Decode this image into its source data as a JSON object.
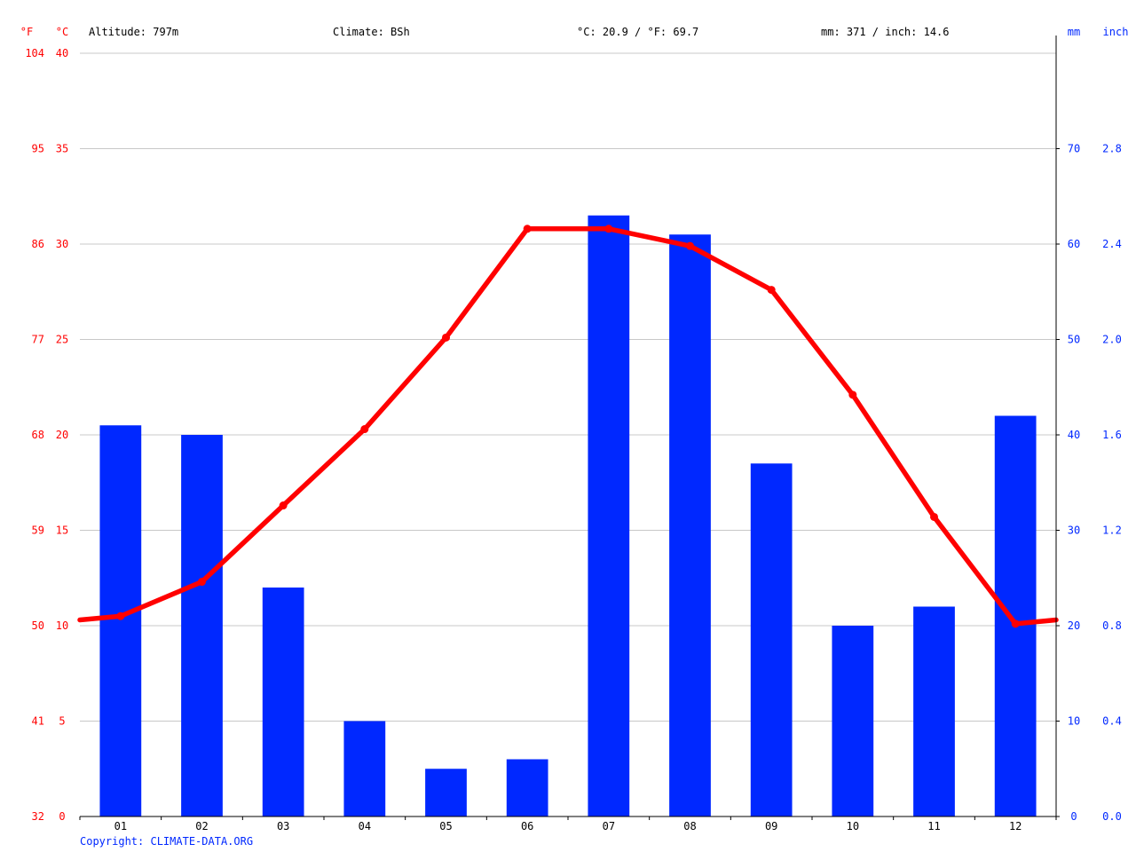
{
  "header": {
    "unit_f": "°F",
    "unit_c": "°C",
    "altitude": "Altitude: 797m",
    "climate": "Climate: BSh",
    "avg_temp": "°C: 20.9 / °F: 69.7",
    "precip_total": "mm: 371 / inch: 14.6",
    "unit_mm": "mm",
    "unit_inch": "inch"
  },
  "copyright": "Copyright: CLIMATE-DATA.ORG",
  "colors": {
    "temperature": "#ff0000",
    "precipitation": "#0028ff",
    "grid": "#c8c8c8",
    "text": "#000000",
    "axis_left": "#ff0000",
    "axis_right": "#0028ff"
  },
  "chart_data": {
    "type": "bar+line",
    "categories": [
      "01",
      "02",
      "03",
      "04",
      "05",
      "06",
      "07",
      "08",
      "09",
      "10",
      "11",
      "12"
    ],
    "series": [
      {
        "type": "bar",
        "unit": "mm",
        "axis": "right",
        "values": [
          41,
          40,
          24,
          10,
          5,
          6,
          63,
          61,
          37,
          20,
          22,
          42
        ]
      },
      {
        "type": "line",
        "unit": "°C",
        "axis": "left",
        "values": [
          10.5,
          12.3,
          16.3,
          20.3,
          25.1,
          30.8,
          30.8,
          29.9,
          27.6,
          22.1,
          15.7,
          10.1
        ]
      }
    ],
    "y_left_celsius_ticks": [
      "0",
      "5",
      "10",
      "15",
      "20",
      "25",
      "30",
      "35",
      "40"
    ],
    "y_left_fahrenheit_ticks": [
      "32",
      "41",
      "50",
      "59",
      "68",
      "77",
      "86",
      "95",
      "104"
    ],
    "y_right_mm_ticks": [
      "0",
      "10",
      "20",
      "30",
      "40",
      "50",
      "60",
      "70"
    ],
    "y_right_inch_ticks": [
      "0.0",
      "0.4",
      "0.8",
      "1.2",
      "1.6",
      "2.0",
      "2.4",
      "2.8"
    ],
    "ylim_celsius": [
      0,
      40
    ],
    "ylim_mm": [
      0,
      80
    ],
    "grid": true
  }
}
